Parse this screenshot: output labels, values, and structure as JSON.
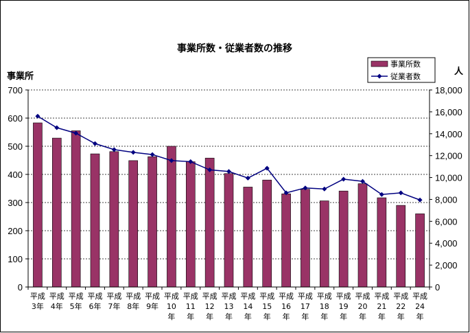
{
  "chart_data": {
    "type": "bar",
    "title": "事業所数・従業者数の推移",
    "ylabel_left": "事業所",
    "ylabel_right": "人",
    "categories": [
      [
        "平成",
        "3年"
      ],
      [
        "平成",
        "4年"
      ],
      [
        "平成",
        "5年"
      ],
      [
        "平成",
        "6年"
      ],
      [
        "平成",
        "7年"
      ],
      [
        "平成",
        "8年"
      ],
      [
        "平成",
        "9年"
      ],
      [
        "平成",
        "10",
        "年"
      ],
      [
        "平成",
        "11",
        "年"
      ],
      [
        "平成",
        "12",
        "年"
      ],
      [
        "平成",
        "13",
        "年"
      ],
      [
        "平成",
        "14",
        "年"
      ],
      [
        "平成",
        "15",
        "年"
      ],
      [
        "平成",
        "16",
        "年"
      ],
      [
        "平成",
        "17",
        "年"
      ],
      [
        "平成",
        "18",
        "年"
      ],
      [
        "平成",
        "19",
        "年"
      ],
      [
        "平成",
        "20",
        "年"
      ],
      [
        "平成",
        "21",
        "年"
      ],
      [
        "平成",
        "22",
        "年"
      ],
      [
        "平成",
        "24",
        "年"
      ]
    ],
    "series": [
      {
        "name": "事業所数",
        "type": "bar",
        "axis": "left",
        "color": "#993366",
        "values": [
          583,
          529,
          555,
          473,
          481,
          449,
          463,
          500,
          445,
          458,
          403,
          355,
          380,
          331,
          347,
          306,
          341,
          367,
          317,
          290,
          260
        ]
      },
      {
        "name": "従業者数",
        "type": "line",
        "axis": "right",
        "color": "#000080",
        "values": [
          15600,
          14550,
          14050,
          13100,
          12550,
          12300,
          12100,
          11550,
          11450,
          10700,
          10550,
          9950,
          10850,
          8600,
          9050,
          8950,
          9850,
          9650,
          8450,
          8600,
          7950
        ]
      }
    ],
    "ylim_left": [
      0,
      700
    ],
    "yticks_left": [
      "0",
      "100",
      "200",
      "300",
      "400",
      "500",
      "600",
      "700"
    ],
    "ylim_right": [
      0,
      18000
    ],
    "yticks_right": [
      "0",
      "2,000",
      "4,000",
      "6,000",
      "8,000",
      "10,000",
      "12,000",
      "14,000",
      "16,000",
      "18,000"
    ],
    "grid": "horizontal dashed",
    "legend_position": "top-right"
  }
}
